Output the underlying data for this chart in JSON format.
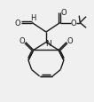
{
  "bg_color": "#f0f0f0",
  "line_color": "#1a1a1a",
  "line_width": 1.0,
  "font_size": 5.5,
  "fig_width": 1.06,
  "fig_height": 1.16,
  "dpi": 100,
  "xlim": [
    0,
    10
  ],
  "ylim": [
    0,
    11
  ]
}
